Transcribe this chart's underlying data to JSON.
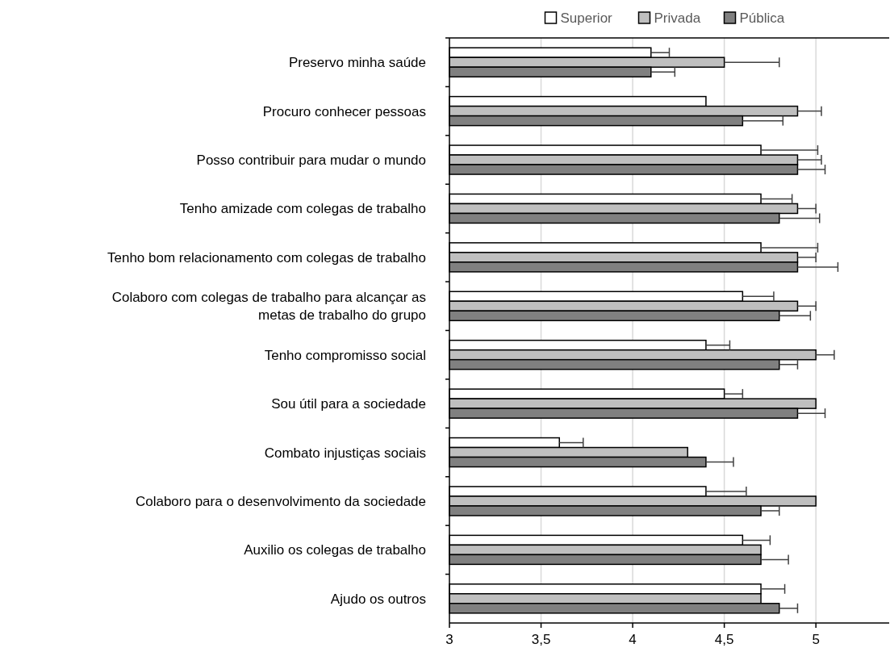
{
  "chart_data": {
    "type": "bar",
    "orientation": "horizontal",
    "categories": [
      "Preservo minha saúde",
      "Procuro conhecer pessoas",
      "Posso contribuir para mudar o mundo",
      "Tenho amizade com colegas de trabalho",
      "Tenho bom relacionamento com colegas de trabalho",
      "Colaboro com colegas de trabalho para alcançar as metas de trabalho do grupo",
      "Tenho compromisso social",
      "Sou útil para a sociedade",
      "Combato injustiças sociais",
      "Colaboro para o desenvolvimento da sociedade",
      "Auxilio os colegas de trabalho",
      "Ajudo os outros"
    ],
    "series": [
      {
        "name": "Superior",
        "color": "#ffffff",
        "values": [
          4.1,
          4.4,
          4.7,
          4.7,
          4.7,
          4.6,
          4.4,
          4.5,
          3.6,
          4.4,
          4.6,
          4.7
        ],
        "errors": [
          [
            4.1,
            4.2
          ],
          null,
          [
            4.7,
            5.01
          ],
          [
            4.7,
            4.87
          ],
          [
            4.7,
            5.01
          ],
          [
            4.6,
            4.77
          ],
          [
            4.4,
            4.53
          ],
          [
            4.5,
            4.6
          ],
          [
            3.6,
            3.73
          ],
          [
            4.4,
            4.62
          ],
          [
            4.6,
            4.75
          ],
          [
            4.7,
            4.83
          ]
        ]
      },
      {
        "name": "Privada",
        "color": "#bfbfbf",
        "values": [
          4.5,
          4.9,
          4.9,
          4.9,
          4.9,
          4.9,
          5.0,
          5.0,
          4.3,
          5.0,
          4.7,
          4.7
        ],
        "errors": [
          [
            4.5,
            4.8
          ],
          [
            4.9,
            5.03
          ],
          [
            4.9,
            5.03
          ],
          [
            4.9,
            5.0
          ],
          [
            4.9,
            5.0
          ],
          [
            4.9,
            5.0
          ],
          [
            5.0,
            5.1
          ],
          null,
          null,
          null,
          null,
          null
        ]
      },
      {
        "name": "Pública",
        "color": "#808080",
        "values": [
          4.1,
          4.6,
          4.9,
          4.8,
          4.9,
          4.8,
          4.8,
          4.9,
          4.4,
          4.7,
          4.7,
          4.8
        ],
        "errors": [
          [
            4.1,
            4.23
          ],
          [
            4.6,
            4.82
          ],
          [
            4.9,
            5.05
          ],
          [
            4.8,
            5.02
          ],
          [
            4.9,
            5.12
          ],
          [
            4.8,
            4.97
          ],
          [
            4.8,
            4.9
          ],
          [
            4.9,
            5.05
          ],
          [
            4.4,
            4.55
          ],
          [
            4.7,
            4.8
          ],
          [
            4.7,
            4.85
          ],
          [
            4.8,
            4.9
          ]
        ]
      }
    ],
    "xlim": [
      3,
      5.4
    ],
    "xticks": [
      3,
      {
        "value": 3.5,
        "label": "3,5"
      },
      4,
      {
        "value": 4.5,
        "label": "4,5"
      },
      5
    ],
    "grid": "x",
    "legend": "top"
  }
}
